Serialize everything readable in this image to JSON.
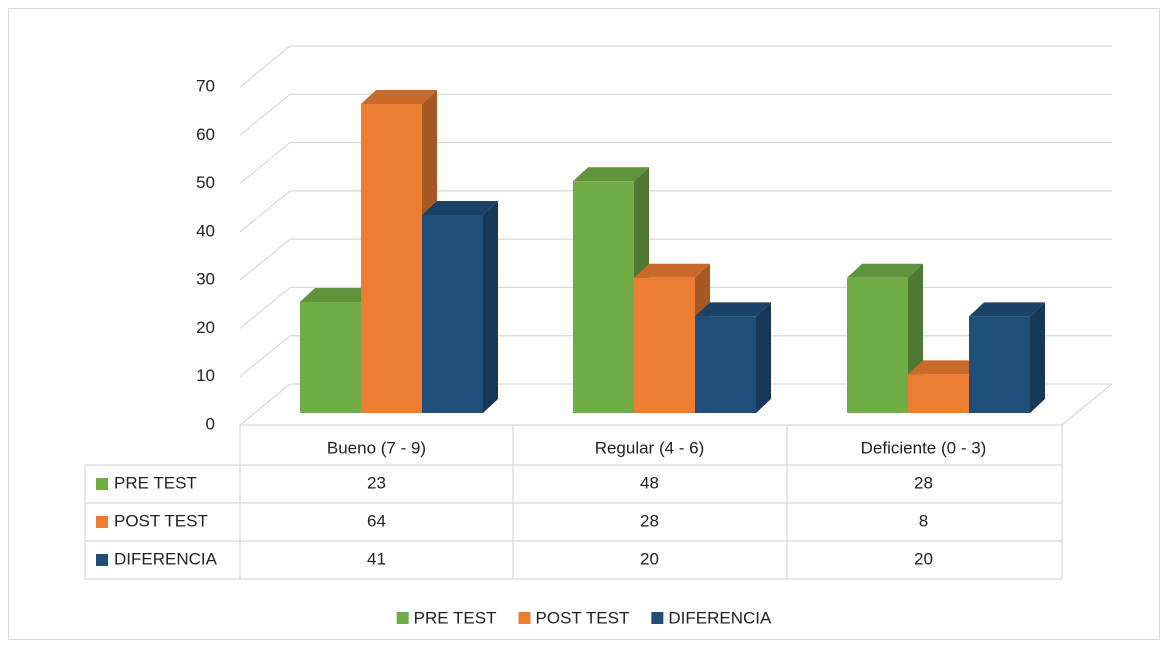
{
  "chart_data": {
    "type": "bar3d",
    "categories": [
      "Bueno (7 - 9)",
      "Regular (4 - 6)",
      "Deficiente (0 - 3)"
    ],
    "series": [
      {
        "name": "PRE TEST",
        "color": "#70ad47",
        "values": [
          23,
          48,
          28
        ]
      },
      {
        "name": "POST TEST",
        "color": "#ed7d31",
        "values": [
          64,
          28,
          8
        ]
      },
      {
        "name": "DIFERENCIA",
        "color": "#1f4e79",
        "values": [
          41,
          20,
          20
        ]
      }
    ],
    "ylim": [
      0,
      70
    ],
    "yticks": [
      0,
      10,
      20,
      30,
      40,
      50,
      60,
      70
    ],
    "grid": true,
    "legend": "bottom",
    "data_table": true
  }
}
